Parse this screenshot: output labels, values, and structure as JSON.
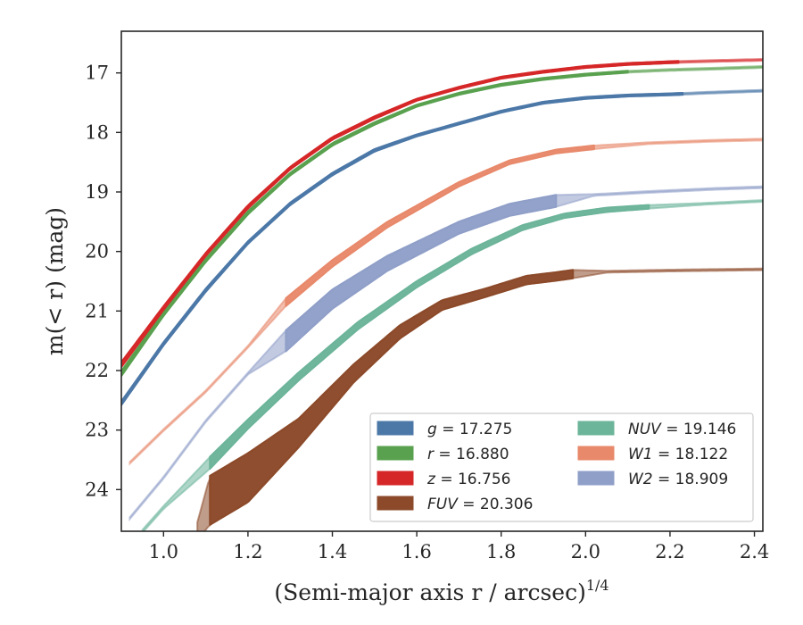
{
  "chart_data": {
    "type": "line",
    "xlabel": "(Semi-major axis r / arcsec)",
    "xlabel_exponent": "1/4",
    "ylabel": "m(< r) (mag)",
    "xlim": [
      0.9,
      2.42
    ],
    "ylim": [
      24.7,
      16.3
    ],
    "y_inverted": true,
    "grid": false,
    "legend_position": "lower-right",
    "x_ticks": [
      "1.0",
      "1.2",
      "1.4",
      "1.6",
      "1.8",
      "2.0",
      "2.2",
      "2.4"
    ],
    "y_ticks": [
      "17",
      "18",
      "19",
      "20",
      "21",
      "22",
      "23",
      "24"
    ],
    "series": [
      {
        "name": "g = 17.275",
        "band": "g",
        "value": "17.275",
        "color": "#4c78a8",
        "x": [
          0.9,
          1.0,
          1.1,
          1.2,
          1.3,
          1.4,
          1.5,
          1.6,
          1.7,
          1.8,
          1.9,
          2.0,
          2.1,
          2.2,
          2.3,
          2.42
        ],
        "y": [
          22.55,
          21.55,
          20.65,
          19.85,
          19.2,
          18.7,
          18.3,
          18.05,
          17.85,
          17.65,
          17.5,
          17.42,
          17.38,
          17.36,
          17.33,
          17.3
        ],
        "width": [
          0.06,
          0.05,
          0.05,
          0.04,
          0.04,
          0.04,
          0.04,
          0.03,
          0.03,
          0.03,
          0.03,
          0.03,
          0.03,
          0.03,
          0.03,
          0.03
        ],
        "x_data_end": 2.23
      },
      {
        "name": "r = 16.880",
        "band": "r",
        "value": "16.880",
        "color": "#59a14f",
        "x": [
          0.9,
          1.0,
          1.1,
          1.2,
          1.3,
          1.4,
          1.5,
          1.6,
          1.7,
          1.8,
          1.9,
          2.0,
          2.1,
          2.2,
          2.3,
          2.42
        ],
        "y": [
          22.05,
          21.05,
          20.15,
          19.35,
          18.7,
          18.2,
          17.85,
          17.55,
          17.35,
          17.2,
          17.1,
          17.03,
          16.98,
          16.95,
          16.93,
          16.9
        ],
        "width": [
          0.08,
          0.06,
          0.05,
          0.05,
          0.04,
          0.04,
          0.04,
          0.03,
          0.03,
          0.03,
          0.03,
          0.03,
          0.03,
          0.03,
          0.03,
          0.03
        ],
        "x_data_end": 2.1
      },
      {
        "name": "z = 16.756",
        "band": "z",
        "value": "16.756",
        "color": "#d62728",
        "x": [
          0.9,
          1.0,
          1.1,
          1.2,
          1.3,
          1.4,
          1.5,
          1.6,
          1.7,
          1.8,
          1.9,
          2.0,
          2.1,
          2.2,
          2.3,
          2.42
        ],
        "y": [
          21.9,
          20.95,
          20.05,
          19.25,
          18.6,
          18.1,
          17.75,
          17.45,
          17.25,
          17.08,
          16.98,
          16.9,
          16.85,
          16.82,
          16.8,
          16.78
        ],
        "width": [
          0.08,
          0.06,
          0.05,
          0.05,
          0.04,
          0.04,
          0.04,
          0.03,
          0.03,
          0.03,
          0.03,
          0.03,
          0.03,
          0.03,
          0.03,
          0.03
        ],
        "x_data_end": 2.22
      },
      {
        "name": "FUV = 20.306",
        "band": "FUV",
        "value": "20.306",
        "color": "#8c4a2a",
        "x": [
          1.08,
          1.11,
          1.2,
          1.32,
          1.45,
          1.56,
          1.66,
          1.76,
          1.86,
          1.93,
          1.97,
          2.05,
          2.2,
          2.42
        ],
        "y": [
          24.7,
          24.18,
          23.8,
          23.05,
          22.05,
          21.35,
          20.9,
          20.7,
          20.48,
          20.42,
          20.38,
          20.34,
          20.32,
          20.3
        ],
        "width": [
          0.3,
          0.82,
          0.82,
          0.48,
          0.3,
          0.22,
          0.16,
          0.14,
          0.14,
          0.14,
          0.14,
          0.03,
          0.03,
          0.03
        ],
        "x_data_start": 1.11,
        "x_data_end": 1.97
      },
      {
        "name": "NUV = 19.146",
        "band": "NUV",
        "value": "19.146",
        "color": "#6cb49a",
        "x": [
          0.95,
          1.0,
          1.11,
          1.2,
          1.32,
          1.46,
          1.6,
          1.73,
          1.85,
          1.95,
          2.05,
          2.15,
          2.28,
          2.42
        ],
        "y": [
          24.7,
          24.3,
          23.55,
          22.9,
          22.1,
          21.25,
          20.55,
          20.0,
          19.6,
          19.4,
          19.3,
          19.25,
          19.2,
          19.15
        ],
        "width": [
          0.05,
          0.05,
          0.2,
          0.15,
          0.13,
          0.12,
          0.1,
          0.09,
          0.08,
          0.07,
          0.07,
          0.06,
          0.03,
          0.03
        ],
        "x_data_start": 1.11,
        "x_data_end": 2.15
      },
      {
        "name": "W1 = 18.122",
        "band": "W1",
        "value": "18.122",
        "color": "#e8896b",
        "x": [
          0.92,
          1.0,
          1.1,
          1.2,
          1.29,
          1.4,
          1.53,
          1.7,
          1.82,
          1.93,
          2.02,
          2.15,
          2.3,
          2.42
        ],
        "y": [
          23.55,
          23.0,
          22.35,
          21.6,
          20.85,
          20.2,
          19.55,
          18.87,
          18.5,
          18.32,
          18.25,
          18.18,
          18.14,
          18.12
        ],
        "width": [
          0.03,
          0.03,
          0.03,
          0.03,
          0.13,
          0.11,
          0.09,
          0.07,
          0.06,
          0.06,
          0.06,
          0.03,
          0.03,
          0.03
        ],
        "x_data_start": 1.29,
        "x_data_end": 2.02
      },
      {
        "name": "W2 = 18.909",
        "band": "W2",
        "value": "18.909",
        "color": "#8f9fc8",
        "x": [
          0.92,
          1.0,
          1.1,
          1.2,
          1.29,
          1.4,
          1.53,
          1.7,
          1.82,
          1.93,
          2.02,
          2.15,
          2.3,
          2.42
        ],
        "y": [
          24.48,
          23.8,
          22.85,
          22.05,
          21.5,
          20.8,
          20.2,
          19.6,
          19.3,
          19.15,
          19.05,
          19.0,
          18.95,
          18.92
        ],
        "width": [
          0.03,
          0.03,
          0.03,
          0.03,
          0.35,
          0.32,
          0.25,
          0.2,
          0.2,
          0.2,
          0.03,
          0.03,
          0.03,
          0.03
        ],
        "x_data_start": 1.29,
        "x_data_end": 1.93
      }
    ],
    "legend": {
      "columns": [
        [
          {
            "band": "g",
            "value": "17.275",
            "color": "#4c78a8",
            "italic": false
          },
          {
            "band": "r",
            "value": "16.880",
            "color": "#59a14f",
            "italic": false
          },
          {
            "band": "z",
            "value": "16.756",
            "color": "#d62728",
            "italic": false
          },
          {
            "band": "FUV",
            "value": "20.306",
            "color": "#8c4a2a",
            "italic": true
          }
        ],
        [
          {
            "band": "NUV",
            "value": "19.146",
            "color": "#6cb49a",
            "italic": true
          },
          {
            "band": "W1",
            "value": "18.122",
            "color": "#e8896b",
            "italic": true
          },
          {
            "band": "W2",
            "value": "18.909",
            "color": "#8f9fc8",
            "italic": true
          }
        ]
      ]
    }
  }
}
